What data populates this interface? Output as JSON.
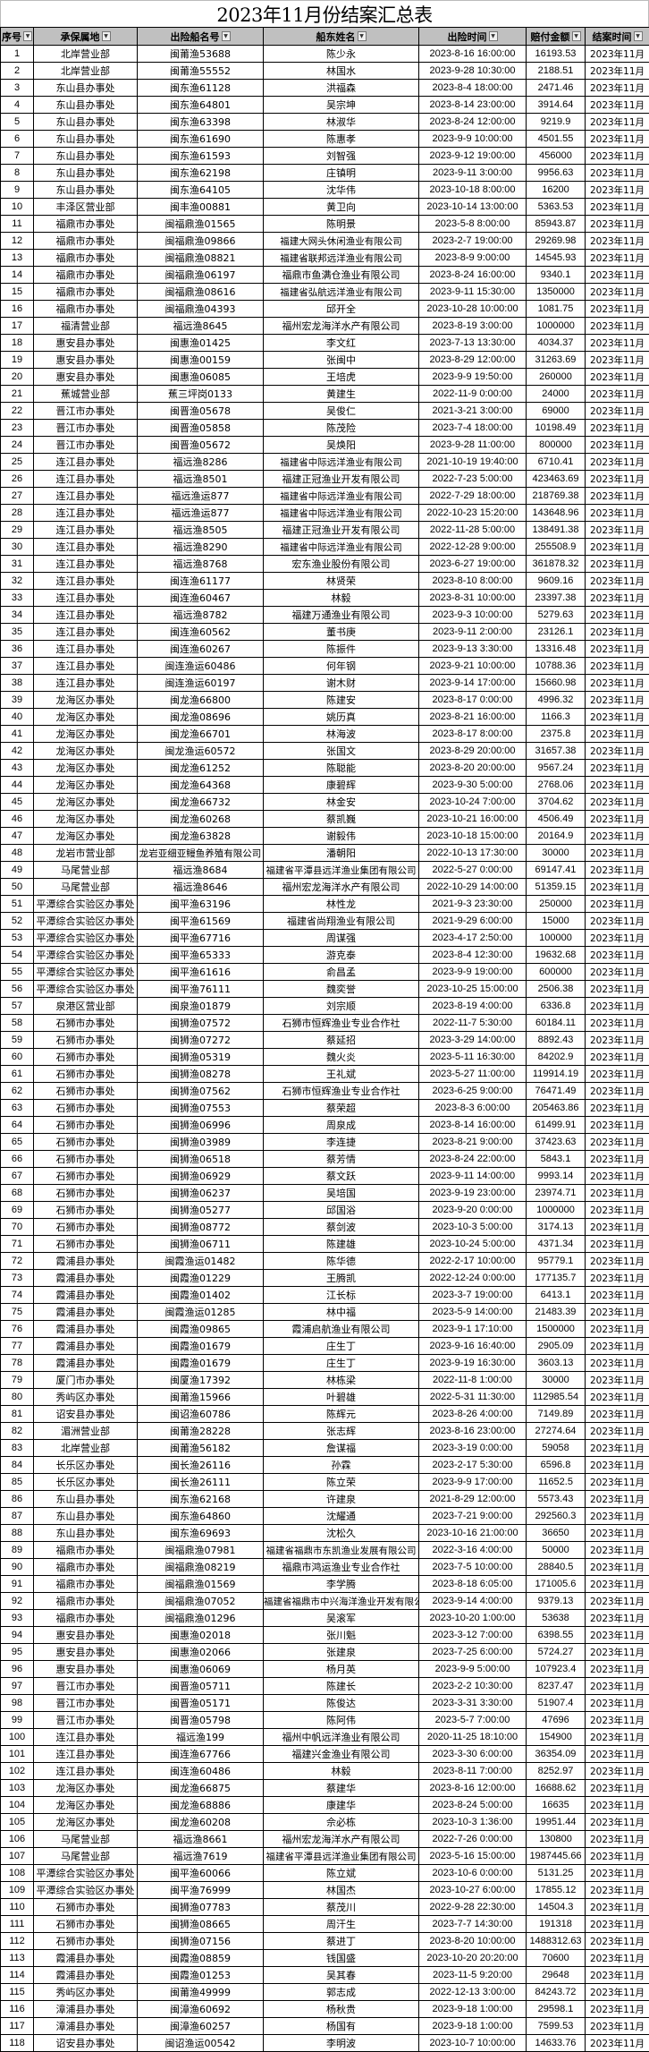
{
  "title": "2023年11月份结案汇总表",
  "header_bg": "#c0c0c0",
  "columns": [
    "序号",
    "承保属地",
    "出险船名号",
    "船东姓名",
    "出险时间",
    "赔付金额",
    "结案时间"
  ],
  "rows": [
    [
      "1",
      "北岸营业部",
      "闽莆渔53688",
      "陈少永",
      "2023-8-16 16:00:00",
      "16193.53",
      "2023年11月"
    ],
    [
      "2",
      "北岸营业部",
      "闽莆渔55552",
      "林国水",
      "2023-9-28 10:30:00",
      "2188.51",
      "2023年11月"
    ],
    [
      "3",
      "东山县办事处",
      "闽东渔61128",
      "洪福森",
      "2023-8-4 18:00:00",
      "2471.46",
      "2023年11月"
    ],
    [
      "4",
      "东山县办事处",
      "闽东渔64801",
      "吴宗坤",
      "2023-8-14 23:00:00",
      "3914.64",
      "2023年11月"
    ],
    [
      "5",
      "东山县办事处",
      "闽东渔63398",
      "林淑华",
      "2023-8-24 12:00:00",
      "9219.9",
      "2023年11月"
    ],
    [
      "6",
      "东山县办事处",
      "闽东渔61690",
      "陈惠孝",
      "2023-9-9 10:00:00",
      "4501.55",
      "2023年11月"
    ],
    [
      "7",
      "东山县办事处",
      "闽东渔61593",
      "刘智强",
      "2023-9-12 19:00:00",
      "456000",
      "2023年11月"
    ],
    [
      "8",
      "东山县办事处",
      "闽东渔62198",
      "庄镇明",
      "2023-9-11 3:00:00",
      "9956.63",
      "2023年11月"
    ],
    [
      "9",
      "东山县办事处",
      "闽东渔64105",
      "沈华伟",
      "2023-10-18 8:00:00",
      "16200",
      "2023年11月"
    ],
    [
      "10",
      "丰泽区营业部",
      "闽丰渔00881",
      "黄卫向",
      "2023-10-14 13:00:00",
      "5363.53",
      "2023年11月"
    ],
    [
      "11",
      "福鼎市办事处",
      "闽福鼎渔01565",
      "陈明景",
      "2023-5-8 8:00:00",
      "85943.87",
      "2023年11月"
    ],
    [
      "12",
      "福鼎市办事处",
      "闽福鼎渔09866",
      "福建大网头休闲渔业有限公司",
      "2023-2-7 19:00:00",
      "29269.98",
      "2023年11月"
    ],
    [
      "13",
      "福鼎市办事处",
      "闽福鼎渔08821",
      "福建省联邦远洋渔业有限公司",
      "2023-8-9 9:00:00",
      "14545.93",
      "2023年11月"
    ],
    [
      "14",
      "福鼎市办事处",
      "闽福鼎渔06197",
      "福鼎市鱼满仓渔业有限公司",
      "2023-8-24 16:00:00",
      "9340.1",
      "2023年11月"
    ],
    [
      "15",
      "福鼎市办事处",
      "闽福鼎渔08616",
      "福建省弘航远洋渔业有限公司",
      "2023-9-11 15:30:00",
      "1350000",
      "2023年11月"
    ],
    [
      "16",
      "福鼎市办事处",
      "闽福鼎渔04393",
      "邱开全",
      "2023-10-28 10:00:00",
      "1081.75",
      "2023年11月"
    ],
    [
      "17",
      "福清营业部",
      "福远渔8645",
      "福州宏龙海洋水产有限公司",
      "2023-8-19 3:00:00",
      "1000000",
      "2023年11月"
    ],
    [
      "18",
      "惠安县办事处",
      "闽惠渔01425",
      "李文红",
      "2023-7-13 13:30:00",
      "4034.37",
      "2023年11月"
    ],
    [
      "19",
      "惠安县办事处",
      "闽惠渔00159",
      "张闽中",
      "2023-8-29 12:00:00",
      "31263.69",
      "2023年11月"
    ],
    [
      "20",
      "惠安县办事处",
      "闽惠渔06085",
      "王培虎",
      "2023-9-9 19:50:00",
      "260000",
      "2023年11月"
    ],
    [
      "21",
      "蕉城营业部",
      "蕉三坪岗0133",
      "黄建生",
      "2022-11-9 0:00:00",
      "24000",
      "2023年11月"
    ],
    [
      "22",
      "晋江市办事处",
      "闽晋渔05678",
      "吴俊仁",
      "2021-3-21 3:00:00",
      "69000",
      "2023年11月"
    ],
    [
      "23",
      "晋江市办事处",
      "闽晋渔05858",
      "陈茂险",
      "2023-7-4 18:00:00",
      "10198.49",
      "2023年11月"
    ],
    [
      "24",
      "晋江市办事处",
      "闽晋渔05672",
      "吴焕阳",
      "2023-9-28 11:00:00",
      "800000",
      "2023年11月"
    ],
    [
      "25",
      "连江县办事处",
      "福远渔8286",
      "福建省中际远洋渔业有限公司",
      "2021-10-19 19:40:00",
      "6710.41",
      "2023年11月"
    ],
    [
      "26",
      "连江县办事处",
      "福远渔8501",
      "福建正冠渔业开发有限公司",
      "2022-7-23 5:00:00",
      "423463.69",
      "2023年11月"
    ],
    [
      "27",
      "连江县办事处",
      "福远渔运877",
      "福建省中际远洋渔业有限公司",
      "2022-7-29 18:00:00",
      "218769.38",
      "2023年11月"
    ],
    [
      "28",
      "连江县办事处",
      "福远渔运877",
      "福建省中际远洋渔业有限公司",
      "2022-10-23 15:20:00",
      "143648.96",
      "2023年11月"
    ],
    [
      "29",
      "连江县办事处",
      "福远渔8505",
      "福建正冠渔业开发有限公司",
      "2022-11-28 5:00:00",
      "138491.38",
      "2023年11月"
    ],
    [
      "30",
      "连江县办事处",
      "福远渔8290",
      "福建省中际远洋渔业有限公司",
      "2022-12-28 9:00:00",
      "255508.9",
      "2023年11月"
    ],
    [
      "31",
      "连江县办事处",
      "福远渔8768",
      "宏东渔业股份有限公司",
      "2023-6-27 19:00:00",
      "361878.32",
      "2023年11月"
    ],
    [
      "32",
      "连江县办事处",
      "闽连渔61177",
      "林贤荣",
      "2023-8-10 8:00:00",
      "9609.16",
      "2023年11月"
    ],
    [
      "33",
      "连江县办事处",
      "闽连渔60467",
      "林毅",
      "2023-8-31 10:00:00",
      "23397.38",
      "2023年11月"
    ],
    [
      "34",
      "连江县办事处",
      "福远渔8782",
      "福建万通渔业有限公司",
      "2023-9-3 10:00:00",
      "5279.63",
      "2023年11月"
    ],
    [
      "35",
      "连江县办事处",
      "闽连渔60562",
      "董书庚",
      "2023-9-11 2:00:00",
      "23126.1",
      "2023年11月"
    ],
    [
      "36",
      "连江县办事处",
      "闽连渔60267",
      "陈振件",
      "2023-9-13 3:30:00",
      "13316.48",
      "2023年11月"
    ],
    [
      "37",
      "连江县办事处",
      "闽连渔运60486",
      "何年钢",
      "2023-9-21 10:00:00",
      "10788.36",
      "2023年11月"
    ],
    [
      "38",
      "连江县办事处",
      "闽连渔运60197",
      "谢木财",
      "2023-9-14 17:00:00",
      "15660.98",
      "2023年11月"
    ],
    [
      "39",
      "龙海区办事处",
      "闽龙渔66800",
      "陈建安",
      "2023-8-17 0:00:00",
      "4996.32",
      "2023年11月"
    ],
    [
      "40",
      "龙海区办事处",
      "闽龙渔08696",
      "姚历真",
      "2023-8-21 16:00:00",
      "1166.3",
      "2023年11月"
    ],
    [
      "41",
      "龙海区办事处",
      "闽龙渔66701",
      "林海波",
      "2023-8-17 8:00:00",
      "2375.8",
      "2023年11月"
    ],
    [
      "42",
      "龙海区办事处",
      "闽龙渔运60572",
      "张国文",
      "2023-8-29 20:00:00",
      "31657.38",
      "2023年11月"
    ],
    [
      "43",
      "龙海区办事处",
      "闽龙渔61252",
      "陈聪能",
      "2023-8-20 20:00:00",
      "9567.24",
      "2023年11月"
    ],
    [
      "44",
      "龙海区办事处",
      "闽龙渔64368",
      "康碧辉",
      "2023-9-30 5:00:00",
      "2768.06",
      "2023年11月"
    ],
    [
      "45",
      "龙海区办事处",
      "闽龙渔66732",
      "林金安",
      "2023-10-24 7:00:00",
      "3704.62",
      "2023年11月"
    ],
    [
      "46",
      "龙海区办事处",
      "闽龙渔60268",
      "蔡凯巍",
      "2023-10-21 16:00:00",
      "4506.49",
      "2023年11月"
    ],
    [
      "47",
      "龙海区办事处",
      "闽龙渔63828",
      "谢毅伟",
      "2023-10-18 15:00:00",
      "20164.9",
      "2023年11月"
    ],
    [
      "48",
      "龙岩市营业部",
      "龙岩亚细亚鳗鱼养殖有限公司",
      "潘朝阳",
      "2022-10-13 17:30:00",
      "30000",
      "2023年11月"
    ],
    [
      "49",
      "马尾营业部",
      "福远渔8684",
      "福建省平潭县远洋渔业集团有限公司",
      "2022-5-27 0:00:00",
      "69147.41",
      "2023年11月"
    ],
    [
      "50",
      "马尾营业部",
      "福远渔8646",
      "福州宏龙海洋水产有限公司",
      "2022-10-29 14:00:00",
      "51359.15",
      "2023年11月"
    ],
    [
      "51",
      "平潭综合实验区办事处",
      "闽平渔63196",
      "林性龙",
      "2021-9-3 23:30:00",
      "250000",
      "2023年11月"
    ],
    [
      "52",
      "平潭综合实验区办事处",
      "闽平渔61569",
      "福建省尚翔渔业有限公司",
      "2021-9-29 6:00:00",
      "15000",
      "2023年11月"
    ],
    [
      "53",
      "平潭综合实验区办事处",
      "闽平渔67716",
      "周谋强",
      "2023-4-17 2:50:00",
      "100000",
      "2023年11月"
    ],
    [
      "54",
      "平潭综合实验区办事处",
      "闽平渔65333",
      "游克泰",
      "2023-8-4 12:30:00",
      "19632.68",
      "2023年11月"
    ],
    [
      "55",
      "平潭综合实验区办事处",
      "闽平渔61616",
      "俞昌孟",
      "2023-9-9 19:00:00",
      "600000",
      "2023年11月"
    ],
    [
      "56",
      "平潭综合实验区办事处",
      "闽平渔76111",
      "魏奕誉",
      "2023-10-25 15:00:00",
      "2506.38",
      "2023年11月"
    ],
    [
      "57",
      "泉港区营业部",
      "闽泉渔01879",
      "刘宗顺",
      "2023-8-19 4:00:00",
      "6336.8",
      "2023年11月"
    ],
    [
      "58",
      "石狮市办事处",
      "闽狮渔07572",
      "石狮市恒辉渔业专业合作社",
      "2022-11-7 5:30:00",
      "60184.11",
      "2023年11月"
    ],
    [
      "59",
      "石狮市办事处",
      "闽狮渔07272",
      "蔡延招",
      "2023-3-29 14:00:00",
      "8892.43",
      "2023年11月"
    ],
    [
      "60",
      "石狮市办事处",
      "闽狮渔05319",
      "魏火炎",
      "2023-5-11 16:30:00",
      "84202.9",
      "2023年11月"
    ],
    [
      "61",
      "石狮市办事处",
      "闽狮渔08278",
      "王礼斌",
      "2023-5-27 11:00:00",
      "119914.19",
      "2023年11月"
    ],
    [
      "62",
      "石狮市办事处",
      "闽狮渔07562",
      "石狮市恒辉渔业专业合作社",
      "2023-6-25 9:00:00",
      "76471.49",
      "2023年11月"
    ],
    [
      "63",
      "石狮市办事处",
      "闽狮渔07553",
      "蔡荣超",
      "2023-8-3 6:00:00",
      "205463.86",
      "2023年11月"
    ],
    [
      "64",
      "石狮市办事处",
      "闽狮渔06996",
      "周泉成",
      "2023-8-14 16:00:00",
      "61499.91",
      "2023年11月"
    ],
    [
      "65",
      "石狮市办事处",
      "闽狮渔03989",
      "李连捷",
      "2023-8-21 9:00:00",
      "37423.63",
      "2023年11月"
    ],
    [
      "66",
      "石狮市办事处",
      "闽狮渔06518",
      "蔡芳情",
      "2023-8-24 22:00:00",
      "5843.1",
      "2023年11月"
    ],
    [
      "67",
      "石狮市办事处",
      "闽狮渔06929",
      "蔡文跃",
      "2023-9-11 14:00:00",
      "9993.14",
      "2023年11月"
    ],
    [
      "68",
      "石狮市办事处",
      "闽狮渔06237",
      "吴培国",
      "2023-9-19 23:00:00",
      "23974.71",
      "2023年11月"
    ],
    [
      "69",
      "石狮市办事处",
      "闽狮渔05277",
      "邱国浴",
      "2023-9-20 0:00:00",
      "1000000",
      "2023年11月"
    ],
    [
      "70",
      "石狮市办事处",
      "闽狮渔08772",
      "蔡剑波",
      "2023-10-3 5:00:00",
      "3174.13",
      "2023年11月"
    ],
    [
      "71",
      "石狮市办事处",
      "闽狮渔06711",
      "陈建雄",
      "2023-10-24 5:00:00",
      "4371.34",
      "2023年11月"
    ],
    [
      "72",
      "霞浦县办事处",
      "闽霞渔运01482",
      "陈华德",
      "2022-2-17 10:00:00",
      "95779.1",
      "2023年11月"
    ],
    [
      "73",
      "霞浦县办事处",
      "闽霞渔01229",
      "王腾凯",
      "2022-12-24 0:00:00",
      "177135.7",
      "2023年11月"
    ],
    [
      "74",
      "霞浦县办事处",
      "闽霞渔01402",
      "江长标",
      "2023-3-7 19:00:00",
      "6413.1",
      "2023年11月"
    ],
    [
      "75",
      "霞浦县办事处",
      "闽霞渔运01285",
      "林中福",
      "2023-5-9 14:00:00",
      "21483.39",
      "2023年11月"
    ],
    [
      "76",
      "霞浦县办事处",
      "闽霞渔09865",
      "霞浦启航渔业有限公司",
      "2023-9-1 17:10:00",
      "1500000",
      "2023年11月"
    ],
    [
      "77",
      "霞浦县办事处",
      "闽霞渔01679",
      "庄生丁",
      "2023-9-16 16:40:00",
      "2905.09",
      "2023年11月"
    ],
    [
      "78",
      "霞浦县办事处",
      "闽霞渔01679",
      "庄生丁",
      "2023-9-19 16:30:00",
      "3603.13",
      "2023年11月"
    ],
    [
      "79",
      "厦门市办事处",
      "闽厦渔17392",
      "林栋梁",
      "2022-11-8 1:00:00",
      "30000",
      "2023年11月"
    ],
    [
      "80",
      "秀屿区办事处",
      "闽莆渔15966",
      "叶碧雄",
      "2022-5-31 11:30:00",
      "112985.54",
      "2023年11月"
    ],
    [
      "81",
      "诏安县办事处",
      "闽诏渔60786",
      "陈辉元",
      "2023-8-26 4:00:00",
      "7149.89",
      "2023年11月"
    ],
    [
      "82",
      "湄洲营业部",
      "闽莆渔28228",
      "张志辉",
      "2023-8-16 23:00:00",
      "27274.64",
      "2023年11月"
    ],
    [
      "83",
      "北岸营业部",
      "闽莆渔56182",
      "詹谋福",
      "2023-3-19 0:00:00",
      "59058",
      "2023年11月"
    ],
    [
      "84",
      "长乐区办事处",
      "闽长渔26116",
      "孙霖",
      "2023-2-17 5:30:00",
      "6596.8",
      "2023年11月"
    ],
    [
      "85",
      "长乐区办事处",
      "闽长渔26111",
      "陈立荣",
      "2023-9-9 17:00:00",
      "11652.5",
      "2023年11月"
    ],
    [
      "86",
      "东山县办事处",
      "闽东渔62168",
      "许建泉",
      "2021-8-29 12:00:00",
      "5573.43",
      "2023年11月"
    ],
    [
      "87",
      "东山县办事处",
      "闽东渔64860",
      "沈耀通",
      "2023-7-21 9:00:00",
      "292560.3",
      "2023年11月"
    ],
    [
      "88",
      "东山县办事处",
      "闽东渔69693",
      "沈松久",
      "2023-10-16 21:00:00",
      "36650",
      "2023年11月"
    ],
    [
      "89",
      "福鼎市办事处",
      "闽福鼎渔07981",
      "福建省福鼎市东凯渔业发展有限公司",
      "2022-3-16 4:00:00",
      "50000",
      "2023年11月"
    ],
    [
      "90",
      "福鼎市办事处",
      "闽福鼎渔08219",
      "福鼎市鸿运渔业专业合作社",
      "2023-7-5 10:00:00",
      "28840.5",
      "2023年11月"
    ],
    [
      "91",
      "福鼎市办事处",
      "闽福鼎渔01569",
      "李学腾",
      "2023-8-18 6:05:00",
      "171005.6",
      "2023年11月"
    ],
    [
      "92",
      "福鼎市办事处",
      "闽福鼎渔07052",
      "福建省福鼎市中兴海洋渔业开发有限公司",
      "2023-9-14 4:00:00",
      "9379.13",
      "2023年11月"
    ],
    [
      "93",
      "福鼎市办事处",
      "闽福鼎渔01296",
      "吴滚军",
      "2023-10-20 1:00:00",
      "53638",
      "2023年11月"
    ],
    [
      "94",
      "惠安县办事处",
      "闽惠渔02018",
      "张川魁",
      "2023-3-12 7:00:00",
      "6398.55",
      "2023年11月"
    ],
    [
      "95",
      "惠安县办事处",
      "闽惠渔02066",
      "张建泉",
      "2023-7-25 6:00:00",
      "5724.27",
      "2023年11月"
    ],
    [
      "96",
      "惠安县办事处",
      "闽惠渔06069",
      "杨月英",
      "2023-9-9 5:00:00",
      "107923.4",
      "2023年11月"
    ],
    [
      "97",
      "晋江市办事处",
      "闽晋渔05711",
      "陈建长",
      "2023-2-2 10:30:00",
      "8237.47",
      "2023年11月"
    ],
    [
      "98",
      "晋江市办事处",
      "闽晋渔05171",
      "陈俊达",
      "2023-3-31 3:30:00",
      "51907.4",
      "2023年11月"
    ],
    [
      "99",
      "晋江市办事处",
      "闽晋渔05798",
      "陈阿伟",
      "2023-5-7 7:00:00",
      "47696",
      "2023年11月"
    ],
    [
      "100",
      "连江县办事处",
      "福远渔199",
      "福州中帆远洋渔业有限公司",
      "2020-11-25 18:10:00",
      "154900",
      "2023年11月"
    ],
    [
      "101",
      "连江县办事处",
      "闽连渔67766",
      "福建兴金渔业有限公司",
      "2023-3-30 6:00:00",
      "36354.09",
      "2023年11月"
    ],
    [
      "102",
      "连江县办事处",
      "闽连渔60486",
      "林毅",
      "2023-8-11 7:00:00",
      "8252.97",
      "2023年11月"
    ],
    [
      "103",
      "龙海区办事处",
      "闽龙渔66875",
      "蔡建华",
      "2023-8-16 12:00:00",
      "16688.62",
      "2023年11月"
    ],
    [
      "104",
      "龙海区办事处",
      "闽龙渔68886",
      "康建华",
      "2023-8-24 5:00:00",
      "16635",
      "2023年11月"
    ],
    [
      "105",
      "龙海区办事处",
      "闽龙渔60208",
      "佘必栋",
      "2023-10-3 1:36:00",
      "19951.44",
      "2023年11月"
    ],
    [
      "106",
      "马尾营业部",
      "福远渔8661",
      "福州宏龙海洋水产有限公司",
      "2022-7-26 0:00:00",
      "130800",
      "2023年11月"
    ],
    [
      "107",
      "马尾营业部",
      "福远渔7619",
      "福建省平潭县远洋渔业集团有限公司",
      "2023-5-16 15:00:00",
      "1987445.66",
      "2023年11月"
    ],
    [
      "108",
      "平潭综合实验区办事处",
      "闽平渔60066",
      "陈立斌",
      "2023-10-6 0:00:00",
      "5131.25",
      "2023年11月"
    ],
    [
      "109",
      "平潭综合实验区办事处",
      "闽平渔76999",
      "林国杰",
      "2023-10-27 6:00:00",
      "17855.12",
      "2023年11月"
    ],
    [
      "110",
      "石狮市办事处",
      "闽狮渔07783",
      "蔡茂川",
      "2022-9-28 22:30:00",
      "14504.3",
      "2023年11月"
    ],
    [
      "111",
      "石狮市办事处",
      "闽狮渔08665",
      "周汗生",
      "2023-7-7 14:30:00",
      "191318",
      "2023年11月"
    ],
    [
      "112",
      "石狮市办事处",
      "闽狮渔07156",
      "蔡进丁",
      "2023-8-20 10:00:00",
      "1488312.63",
      "2023年11月"
    ],
    [
      "113",
      "霞浦县办事处",
      "闽霞渔08859",
      "钱国盛",
      "2023-10-20 20:20:00",
      "70600",
      "2023年11月"
    ],
    [
      "114",
      "霞浦县办事处",
      "闽霞渔01253",
      "吴其春",
      "2023-11-5 9:20:00",
      "29648",
      "2023年11月"
    ],
    [
      "115",
      "秀屿区办事处",
      "闽莆渔49999",
      "郭志成",
      "2022-12-13 3:00:00",
      "84243.72",
      "2023年11月"
    ],
    [
      "116",
      "漳浦县办事处",
      "闽漳渔60692",
      "杨秋贵",
      "2023-9-18 1:00:00",
      "29598.1",
      "2023年11月"
    ],
    [
      "117",
      "漳浦县办事处",
      "闽漳渔60257",
      "杨国有",
      "2023-9-18 1:00:00",
      "7599.53",
      "2023年11月"
    ],
    [
      "118",
      "诏安县办事处",
      "闽诏渔运00542",
      "李明波",
      "2023-10-7 10:00:00",
      "14633.76",
      "2023年11月"
    ]
  ]
}
